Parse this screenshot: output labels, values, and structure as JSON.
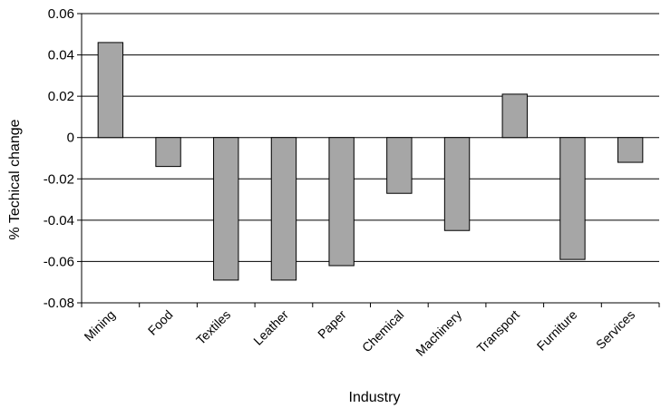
{
  "chart_data": {
    "type": "bar",
    "title": "",
    "xlabel": "Industry",
    "ylabel": "% Techical change",
    "ylim": [
      -0.08,
      0.06
    ],
    "yticks": [
      "0.06",
      "0.04",
      "0.02",
      "0",
      "-0.02",
      "-0.04",
      "-0.06",
      "-0.08"
    ],
    "ytick_values": [
      0.06,
      0.04,
      0.02,
      0,
      -0.02,
      -0.04,
      -0.06,
      -0.08
    ],
    "grid": true,
    "categories": [
      "Mining",
      "Food",
      "Textiles",
      "Leather",
      "Paper",
      "Chemical",
      "Machinery",
      "Transport",
      "Furniture",
      "Services"
    ],
    "values": [
      0.046,
      -0.014,
      -0.069,
      -0.069,
      -0.062,
      -0.027,
      -0.045,
      0.021,
      -0.059,
      -0.012
    ],
    "bar_color": "#a6a6a6",
    "edge_color": "#000000"
  }
}
